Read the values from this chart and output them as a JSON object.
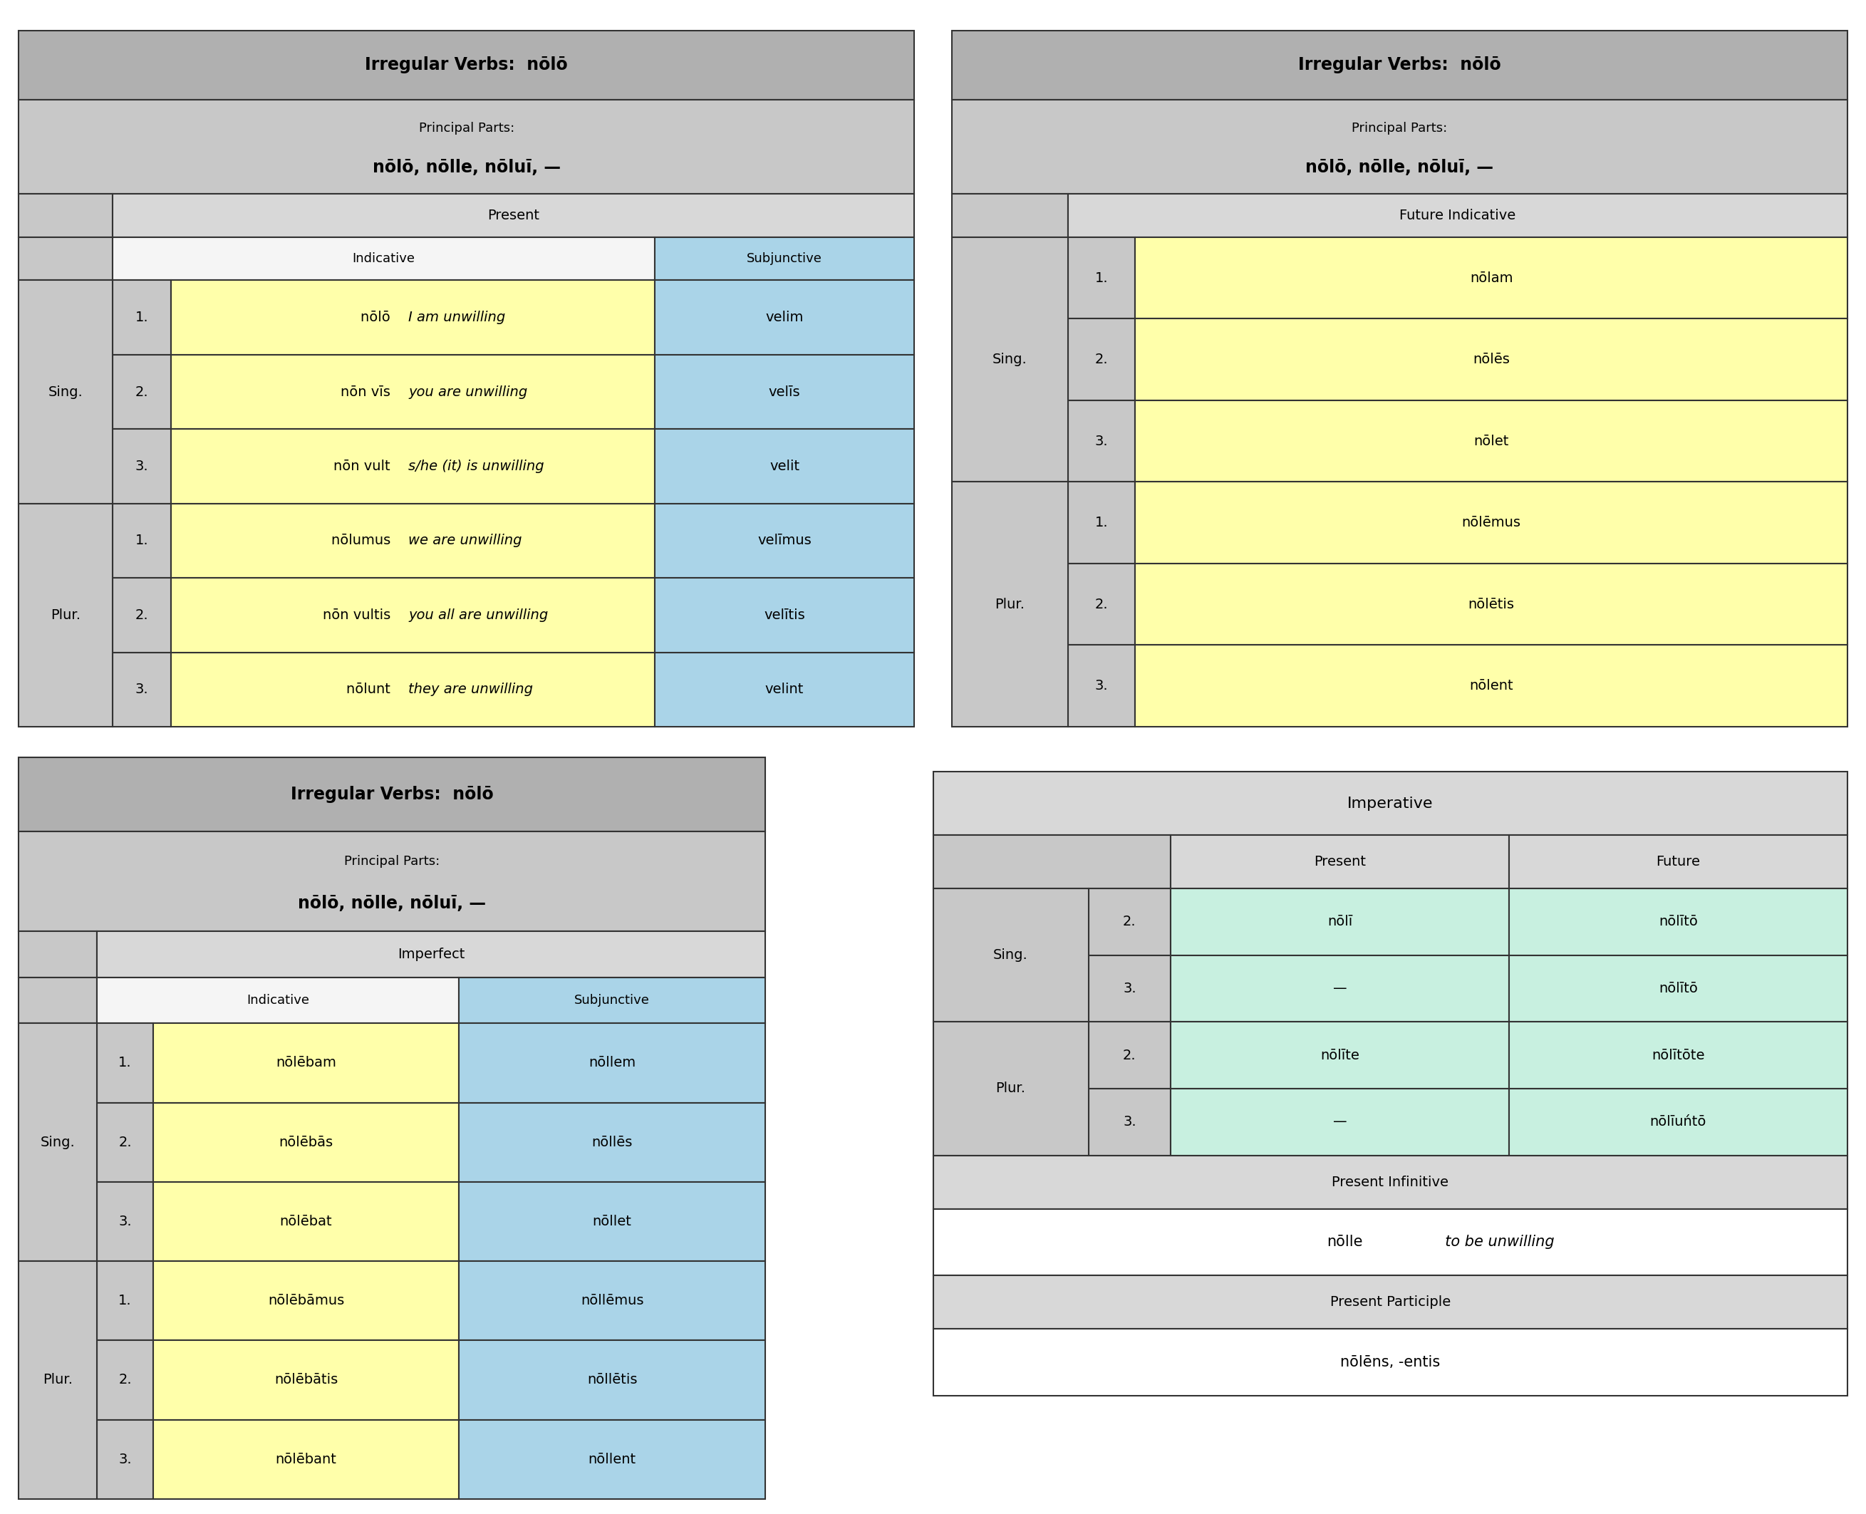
{
  "bg": "#ffffff",
  "gray_dark": "#b0b0b0",
  "gray_med": "#c8c8c8",
  "gray_light": "#d8d8d8",
  "yellow": "#ffffaa",
  "blue": "#aad4e8",
  "green": "#c8f0e0",
  "white": "#ffffff",
  "white_cell": "#f5f5f5",
  "table1": {
    "title": "Irregular Verbs:  nōlō",
    "principal_line1": "Principal Parts:",
    "principal_line2": "nōlō, nōlle, nōluī, —",
    "mood_header": "Present",
    "ind_header": "Indicative",
    "subj_header": "Subjunctive",
    "rows": [
      [
        "Sing.",
        "1.",
        "nōlō   ",
        "I am unwilling",
        "velim"
      ],
      [
        "",
        "2.",
        "nōn vīs   ",
        "you are unwilling",
        "velīs"
      ],
      [
        "",
        "3.",
        "nōn vult   ",
        "s/he (it) is unwilling",
        "velit"
      ],
      [
        "Plur.",
        "1.",
        "nōlumus   ",
        "we are unwilling",
        "velīmus"
      ],
      [
        "",
        "2.",
        "nōn vultis   ",
        "you all are unwilling",
        "velītis"
      ],
      [
        "",
        "3.",
        "nōlunt   ",
        "they are unwilling",
        "velint"
      ]
    ]
  },
  "table2": {
    "title": "Irregular Verbs:  nōlō",
    "principal_line1": "Principal Parts:",
    "principal_line2": "nōlō, nōlle, nōluī, —",
    "mood_header": "Future Indicative",
    "rows": [
      [
        "Sing.",
        "1.",
        "nōlam"
      ],
      [
        "",
        "2.",
        "nōlēs"
      ],
      [
        "",
        "3.",
        "nōlet"
      ],
      [
        "Plur.",
        "1.",
        "nōlēmus"
      ],
      [
        "",
        "2.",
        "nōlētis"
      ],
      [
        "",
        "3.",
        "nōlent"
      ]
    ]
  },
  "table3": {
    "title": "Irregular Verbs:  nōlō",
    "principal_line1": "Principal Parts:",
    "principal_line2": "nōlō, nōlle, nōluī, —",
    "mood_header": "Imperfect",
    "ind_header": "Indicative",
    "subj_header": "Subjunctive",
    "rows": [
      [
        "Sing.",
        "1.",
        "nōlēbam",
        "nōllem"
      ],
      [
        "",
        "2.",
        "nōlēbās",
        "nōllēs"
      ],
      [
        "",
        "3.",
        "nōlēbat",
        "nōllet"
      ],
      [
        "Plur.",
        "1.",
        "nōlēbāmus",
        "nōllēmus"
      ],
      [
        "",
        "2.",
        "nōlēbātis",
        "nōllētis"
      ],
      [
        "",
        "3.",
        "nōlēbant",
        "nōllent"
      ]
    ]
  },
  "table4": {
    "imp_header": "Imperative",
    "pres_header": "Present",
    "fut_header": "Future",
    "rows": [
      [
        "Sing.",
        "2.",
        "nōlī",
        "nōlītō"
      ],
      [
        "",
        "3.",
        "—",
        "nōlītō"
      ],
      [
        "Plur.",
        "2.",
        "nōlīte",
        "nōlītōte"
      ],
      [
        "",
        "3.",
        "—",
        "nōlīuńtō"
      ]
    ],
    "inf_header": "Present Infinitive",
    "inf_bold": "nōlle",
    "inf_italic": "  to be unwilling",
    "part_header": "Present Participle",
    "part_val": "nōlēns, -entis"
  }
}
